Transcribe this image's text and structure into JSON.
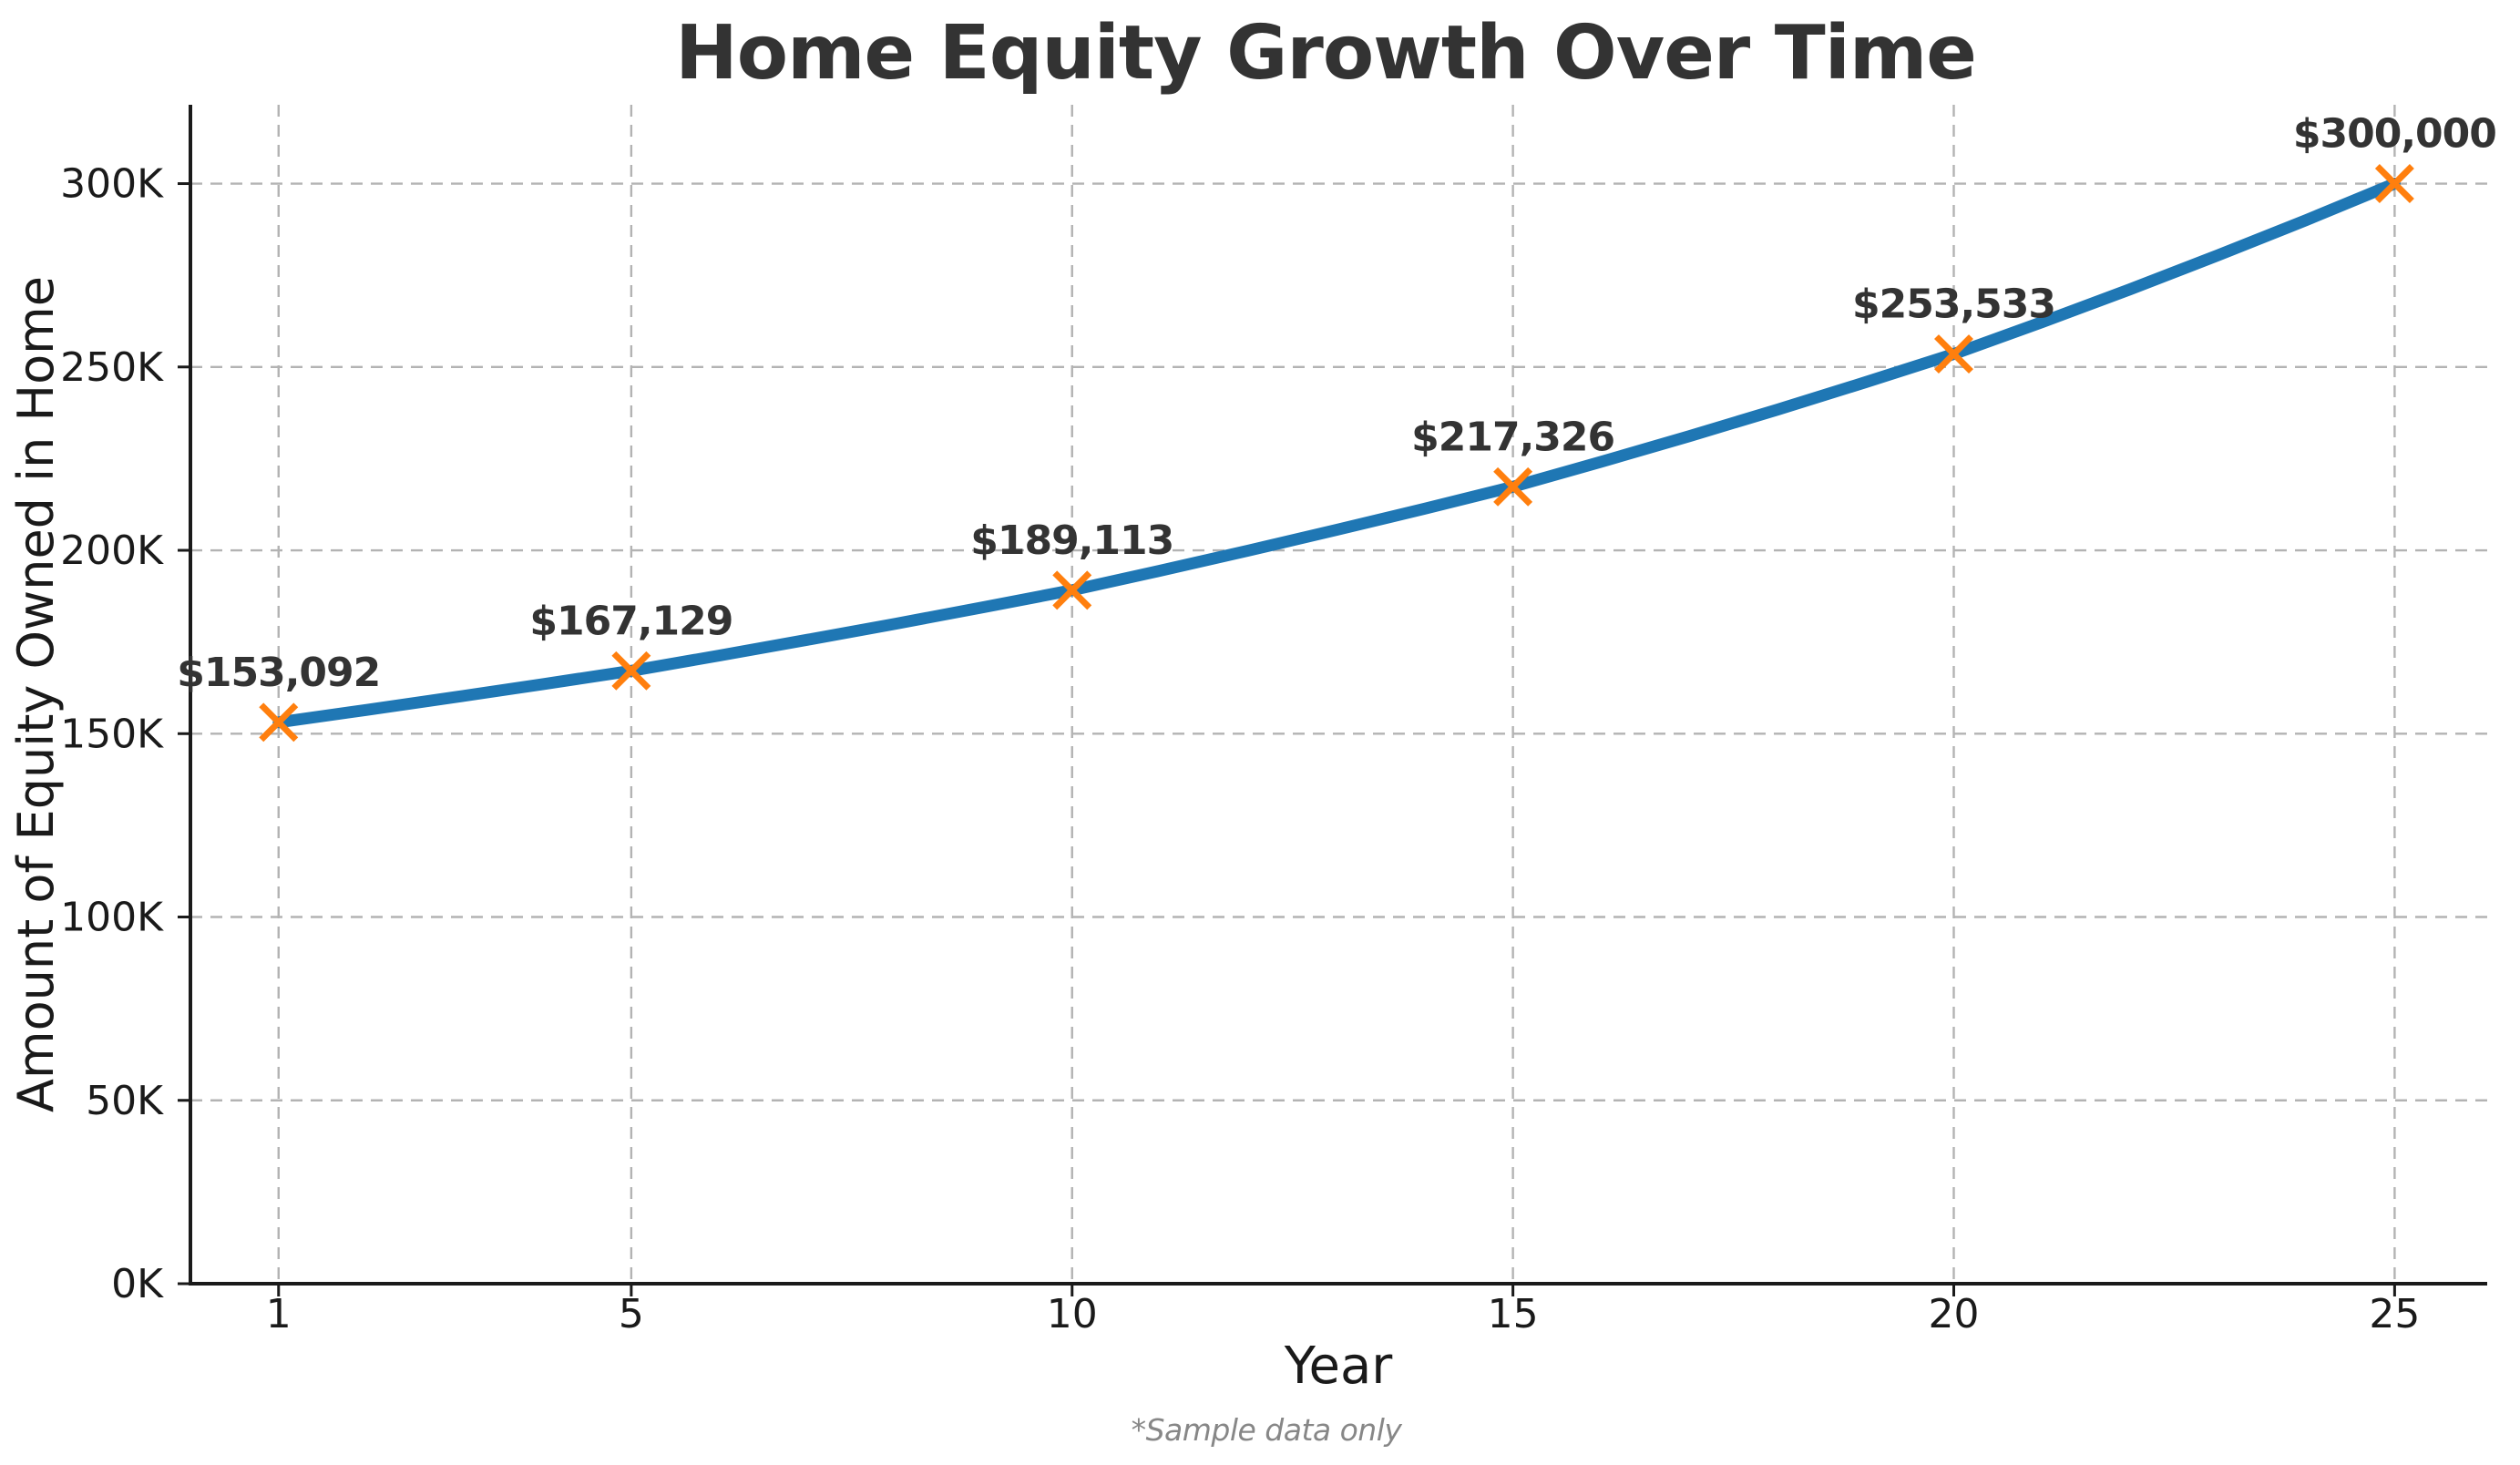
{
  "chart_data": {
    "type": "line",
    "title": "Home Equity Growth Over Time",
    "xlabel": "Year",
    "ylabel": "Amount of Equity Owned in Home",
    "footnote": "*Sample data only",
    "x": [
      1,
      5,
      10,
      15,
      20,
      25
    ],
    "y": [
      153092,
      167129,
      189113,
      217326,
      253533,
      300000
    ],
    "point_labels": [
      "$153,092",
      "$167,129",
      "$189,113",
      "$217,326",
      "$253,533",
      "$300,000"
    ],
    "x_tick_values": [
      1,
      5,
      10,
      15,
      20,
      25
    ],
    "x_tick_labels": [
      "1",
      "5",
      "10",
      "15",
      "20",
      "25"
    ],
    "y_tick_values": [
      0,
      50000,
      100000,
      150000,
      200000,
      250000,
      300000
    ],
    "y_tick_labels": [
      "0K",
      "50K",
      "100K",
      "150K",
      "200K",
      "250K",
      "300K"
    ],
    "xlim": [
      0,
      26.05
    ],
    "ylim": [
      0,
      321500
    ],
    "grid": "dashed-both-axes",
    "legend": "none",
    "marker_style": "x",
    "line_interpolation": "compound-growth-per-year",
    "colors": {
      "line": "#1f77b4",
      "marker": "#ff7f0e",
      "grid": "#b3b3b3",
      "spine": "#1a1a1a",
      "tick_label": "#1a1a1a",
      "title": "#333333",
      "data_label": "#333333",
      "axis_label": "#1a1a1a",
      "footnote": "#878787"
    }
  }
}
